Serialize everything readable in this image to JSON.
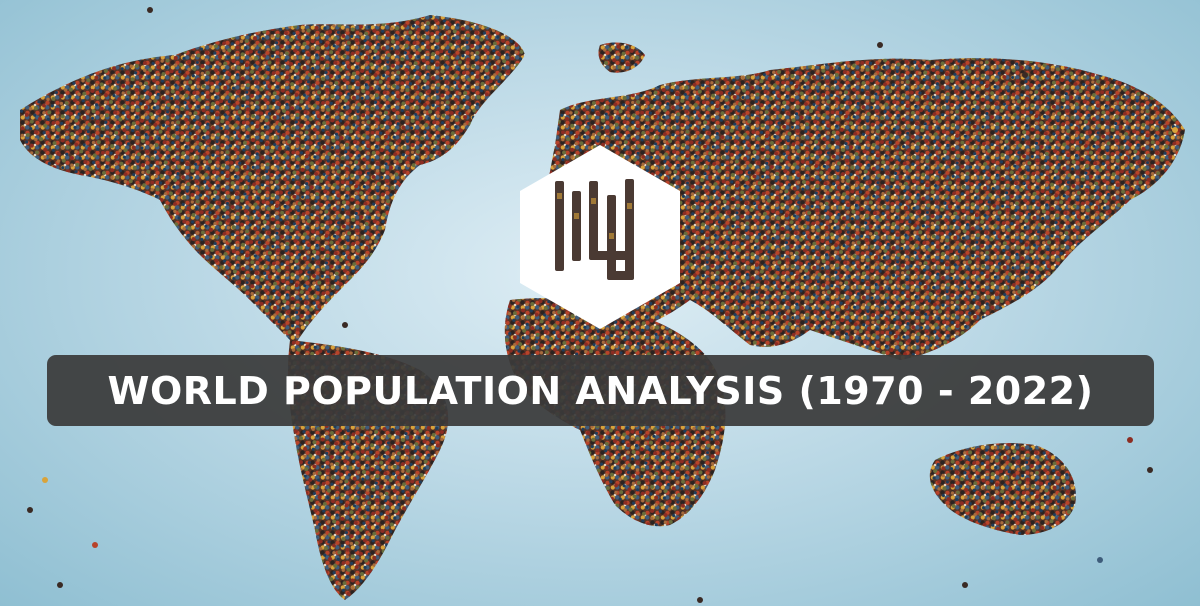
{
  "banner": {
    "title": "WORLD POPULATION ANALYSIS (1970 - 2022)"
  },
  "colors": {
    "background_light": "#dfeef5",
    "background_dark": "#8fbfd2",
    "banner_bg": "#3a3a3a",
    "banner_text": "#ffffff",
    "logo_fill": "#ffffff",
    "crowd_palette": [
      "#2b2320",
      "#5a3324",
      "#8c2d22",
      "#b8432a",
      "#d9a33a",
      "#3e5c7a",
      "#6a6d3a",
      "#e0d6c6",
      "#1f3d5a",
      "#a86b3c"
    ]
  },
  "icons": {
    "logo": "hexagon-logo-icon"
  }
}
